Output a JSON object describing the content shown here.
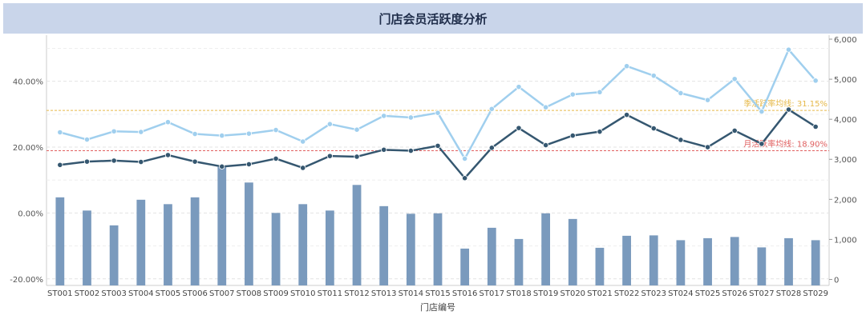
{
  "chart_data": {
    "type": "bar+line",
    "title": "门店会员活跃度分析",
    "xlabel": "门店编号",
    "categories": [
      "ST001",
      "ST002",
      "ST003",
      "ST004",
      "ST005",
      "ST006",
      "ST007",
      "ST008",
      "ST009",
      "ST010",
      "ST011",
      "ST012",
      "ST013",
      "ST014",
      "ST015",
      "ST016",
      "ST017",
      "ST018",
      "ST019",
      "ST020",
      "ST021",
      "ST022",
      "ST023",
      "ST024",
      "ST025",
      "ST026",
      "ST027",
      "ST028",
      "ST029"
    ],
    "left_axis": {
      "ticks": [
        "-20.00%",
        "0.00%",
        "20.00%",
        "40.00%"
      ],
      "tick_values": [
        -20,
        0,
        20,
        40
      ],
      "range": [
        -22,
        54
      ]
    },
    "right_axis": {
      "ticks": [
        "0",
        "1,000",
        "2,000",
        "3,000",
        "4,000",
        "5,000",
        "6,000"
      ],
      "tick_values": [
        0,
        1000,
        2000,
        3000,
        4000,
        5000,
        6000
      ],
      "range": [
        -150,
        6100
      ]
    },
    "bars": {
      "axis": "right",
      "color": "#7a9abd",
      "values": [
        2050,
        1720,
        1350,
        1990,
        1880,
        2050,
        2810,
        2420,
        1660,
        1880,
        1720,
        2360,
        1830,
        1640,
        1650,
        770,
        1290,
        1010,
        1650,
        1510,
        790,
        1090,
        1100,
        980,
        1030,
        1060,
        800,
        1030,
        980
      ]
    },
    "series": [
      {
        "axis": "left",
        "color": "#a0cfee",
        "values": [
          24.5,
          22.3,
          24.8,
          24.6,
          27.6,
          24.0,
          23.5,
          24.1,
          25.2,
          21.7,
          27.0,
          25.3,
          29.5,
          29.0,
          30.4,
          16.5,
          31.6,
          38.3,
          32.1,
          36.0,
          36.7,
          44.6,
          41.7,
          36.4,
          34.3,
          40.7,
          30.8,
          49.6,
          40.2
        ]
      },
      {
        "axis": "left",
        "color": "#355770",
        "values": [
          14.6,
          15.6,
          15.9,
          15.5,
          17.6,
          15.6,
          14.1,
          14.8,
          16.5,
          13.7,
          17.3,
          17.1,
          19.2,
          18.9,
          20.4,
          10.6,
          19.8,
          25.8,
          20.6,
          23.5,
          24.7,
          29.8,
          25.7,
          22.2,
          20.0,
          25.0,
          21.0,
          31.4,
          26.2
        ]
      }
    ],
    "reference_lines": [
      {
        "label": "季活跃率均线: 31.15%",
        "value": 31.15,
        "axis": "left",
        "color": "#e6b94a"
      },
      {
        "label": "月活跃率均线: 18.90%",
        "value": 18.9,
        "axis": "left",
        "color": "#e06060"
      }
    ]
  }
}
